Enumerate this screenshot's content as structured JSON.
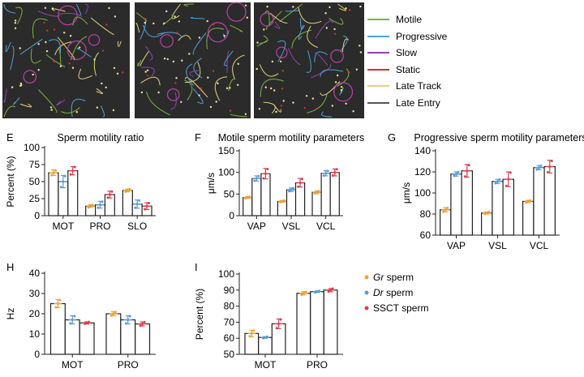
{
  "colors": {
    "gr": "#e8a23a",
    "dr": "#5b9bd5",
    "ssct": "#d9414f",
    "track_bg": "#2b2b2b"
  },
  "track_legend": {
    "items": [
      {
        "label": "Motile",
        "color": "#7cb342"
      },
      {
        "label": "Progressive",
        "color": "#4fa3d9"
      },
      {
        "label": "Slow",
        "color": "#8e44ad"
      },
      {
        "label": "Static",
        "color": "#d0312d"
      },
      {
        "label": "Late Track",
        "color": "#e6d27a"
      },
      {
        "label": "Late Entry",
        "color": "#555555"
      }
    ]
  },
  "sample_legend": [
    {
      "label": "Gr",
      "suffix": " sperm",
      "italic": true,
      "color": "#e8a23a"
    },
    {
      "label": "Dr",
      "suffix": " sperm",
      "italic": true,
      "color": "#5b9bd5"
    },
    {
      "label": "SSCT sperm",
      "suffix": "",
      "italic": false,
      "color": "#d9414f"
    }
  ],
  "chart_data": [
    {
      "id": "E",
      "letter": "E",
      "type": "bar",
      "title": "Sperm motility ratio",
      "ylabel": "Percent (%)",
      "xlabel": "",
      "ylim": [
        0,
        100
      ],
      "yticks": [
        0,
        25,
        50,
        75,
        100
      ],
      "categories": [
        "MOT",
        "PRO",
        "SLO"
      ],
      "series": [
        {
          "name": "Gr sperm",
          "values": [
            63,
            14,
            37
          ],
          "errors": [
            4,
            2,
            2
          ]
        },
        {
          "name": "Dr sperm",
          "values": [
            50,
            16,
            17
          ],
          "errors": [
            9,
            5,
            6
          ]
        },
        {
          "name": "SSCT sperm",
          "values": [
            66,
            31,
            14
          ],
          "errors": [
            6,
            5,
            5
          ]
        }
      ]
    },
    {
      "id": "F",
      "letter": "F",
      "type": "bar",
      "title": "Motile sperm motility parameters",
      "ylabel": "μm/s",
      "xlabel": "",
      "ylim": [
        0,
        150
      ],
      "yticks": [
        0,
        50,
        100,
        150
      ],
      "categories": [
        "VAP",
        "VSL",
        "VCL"
      ],
      "series": [
        {
          "name": "Gr sperm",
          "values": [
            42,
            33,
            54
          ],
          "errors": [
            2,
            2,
            3
          ]
        },
        {
          "name": "Dr sperm",
          "values": [
            86,
            60,
            98
          ],
          "errors": [
            6,
            4,
            6
          ]
        },
        {
          "name": "SSCT sperm",
          "values": [
            97,
            76,
            100
          ],
          "errors": [
            12,
            10,
            8
          ]
        }
      ]
    },
    {
      "id": "G",
      "letter": "G",
      "type": "bar",
      "title": "Progressive sperm motility parameters",
      "ylabel": "μm/s",
      "xlabel": "",
      "ylim": [
        60,
        140
      ],
      "yticks": [
        60,
        80,
        100,
        120,
        140
      ],
      "categories": [
        "VAP",
        "VSL",
        "VCL"
      ],
      "series": [
        {
          "name": "Gr sperm",
          "values": [
            84,
            81,
            92
          ],
          "errors": [
            2,
            1,
            1
          ]
        },
        {
          "name": "Dr sperm",
          "values": [
            118,
            111,
            124
          ],
          "errors": [
            2,
            2,
            2
          ]
        },
        {
          "name": "SSCT sperm",
          "values": [
            121,
            113,
            125
          ],
          "errors": [
            6,
            7,
            6
          ]
        }
      ]
    },
    {
      "id": "H",
      "letter": "H",
      "type": "bar",
      "title": "",
      "ylabel": "Hz",
      "xlabel": "",
      "ylim": [
        0,
        40
      ],
      "yticks": [
        0,
        10,
        20,
        30,
        40
      ],
      "categories": [
        "MOT",
        "PRO"
      ],
      "series": [
        {
          "name": "Gr sperm",
          "values": [
            25,
            20
          ],
          "errors": [
            2,
            1
          ]
        },
        {
          "name": "Dr sperm",
          "values": [
            17,
            17
          ],
          "errors": [
            2,
            2
          ]
        },
        {
          "name": "SSCT sperm",
          "values": [
            15.5,
            15
          ],
          "errors": [
            0.5,
            1
          ]
        }
      ]
    },
    {
      "id": "I",
      "letter": "I",
      "type": "bar",
      "title": "",
      "ylabel": "Percent (%)",
      "xlabel": "",
      "ylim": [
        50,
        100
      ],
      "yticks": [
        50,
        60,
        70,
        80,
        90,
        100
      ],
      "categories": [
        "MOT",
        "PRO"
      ],
      "series": [
        {
          "name": "Gr sperm",
          "values": [
            63,
            88
          ],
          "errors": [
            2,
            1
          ]
        },
        {
          "name": "Dr sperm",
          "values": [
            60.5,
            89
          ],
          "errors": [
            0.5,
            0.5
          ]
        },
        {
          "name": "SSCT sperm",
          "values": [
            69,
            90
          ],
          "errors": [
            3,
            1
          ]
        }
      ]
    }
  ]
}
